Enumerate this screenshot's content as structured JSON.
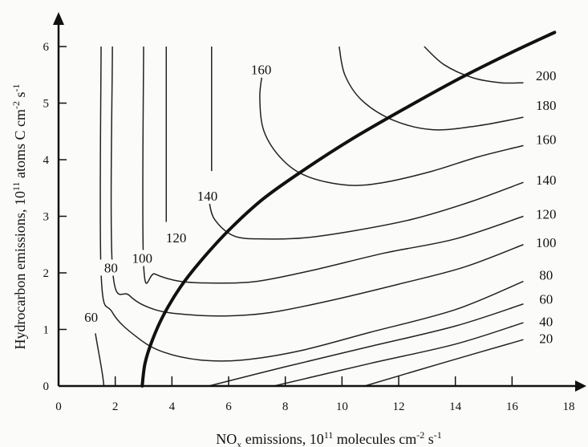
{
  "chart_data": {
    "type": "contour",
    "xlabel": {
      "pre": "NO",
      "sub": "x",
      "mid": " emissions, 10",
      "sup": "11",
      "post": " molecules cm",
      "sup2": "-2",
      "post2": " s",
      "sup3": "-1"
    },
    "ylabel": {
      "pre": "Hydrocarbon emissions, 10",
      "sup": "11",
      "mid": " atoms C cm",
      "sup2": "-2",
      "post": " s",
      "sup3": "-1"
    },
    "xlim": [
      0,
      18
    ],
    "ylim": [
      0,
      6.3
    ],
    "x_ticks": [
      0,
      2,
      4,
      6,
      8,
      10,
      12,
      14,
      16,
      18
    ],
    "y_ticks": [
      0,
      1,
      2,
      3,
      4,
      5,
      6
    ],
    "grid": false,
    "ridge_line": [
      [
        2.95,
        0
      ],
      [
        3.05,
        0.4
      ],
      [
        3.3,
        0.8
      ],
      [
        3.7,
        1.25
      ],
      [
        4.3,
        1.75
      ],
      [
        5.0,
        2.2
      ],
      [
        6.0,
        2.75
      ],
      [
        7.2,
        3.3
      ],
      [
        8.6,
        3.8
      ],
      [
        10.3,
        4.35
      ],
      [
        12.2,
        4.9
      ],
      [
        14.2,
        5.45
      ],
      [
        16.0,
        5.9
      ],
      [
        17.5,
        6.25
      ]
    ],
    "contours": [
      {
        "level": 20,
        "label": "20",
        "points": [
          [
            10.8,
            0
          ],
          [
            13.5,
            0.4
          ],
          [
            16.4,
            0.82
          ]
        ]
      },
      {
        "level": 40,
        "label": "40",
        "points": [
          [
            7.6,
            0
          ],
          [
            11.0,
            0.4
          ],
          [
            14.0,
            0.74
          ],
          [
            16.4,
            1.12
          ]
        ]
      },
      {
        "level": 60,
        "label": "60",
        "points": [
          [
            5.3,
            0
          ],
          [
            8.0,
            0.34
          ],
          [
            11.0,
            0.7
          ],
          [
            14.0,
            1.06
          ],
          [
            16.4,
            1.45
          ]
        ]
      },
      {
        "level": 80,
        "label": "80",
        "points": [
          [
            1.5,
            6.0
          ],
          [
            1.5,
            2.0
          ],
          [
            1.9,
            1.3
          ],
          [
            2.8,
            0.85
          ],
          [
            3.7,
            0.6
          ],
          [
            5.0,
            0.46
          ],
          [
            6.5,
            0.46
          ],
          [
            8.5,
            0.62
          ],
          [
            11.0,
            0.95
          ],
          [
            14.0,
            1.35
          ],
          [
            16.4,
            1.85
          ]
        ]
      },
      {
        "level": 100,
        "label": "100",
        "points": [
          [
            1.9,
            6.0
          ],
          [
            1.9,
            2.1
          ],
          [
            2.5,
            1.6
          ],
          [
            3.4,
            1.35
          ],
          [
            4.6,
            1.26
          ],
          [
            6.0,
            1.24
          ],
          [
            7.5,
            1.3
          ],
          [
            9.5,
            1.5
          ],
          [
            12.0,
            1.8
          ],
          [
            14.3,
            2.1
          ],
          [
            16.4,
            2.5
          ]
        ]
      },
      {
        "level": 120,
        "label": "120",
        "points": [
          [
            3.0,
            6.0
          ],
          [
            3.0,
            2.15
          ],
          [
            3.4,
            1.98
          ],
          [
            4.3,
            1.85
          ],
          [
            5.5,
            1.82
          ],
          [
            7.0,
            1.85
          ],
          [
            9.0,
            2.05
          ],
          [
            11.5,
            2.35
          ],
          [
            14.0,
            2.6
          ],
          [
            16.4,
            3.0
          ]
        ]
      },
      {
        "level": 140,
        "label": "140",
        "points": [
          [
            3.8,
            6.0
          ],
          [
            3.8,
            2.9
          ]
        ]
      },
      {
        "level": 140,
        "label": "140",
        "points": [
          [
            5.3,
            3.3
          ],
          [
            5.5,
            2.95
          ],
          [
            6.2,
            2.65
          ],
          [
            7.3,
            2.6
          ],
          [
            8.7,
            2.62
          ],
          [
            10.5,
            2.75
          ],
          [
            12.5,
            2.95
          ],
          [
            14.5,
            3.25
          ],
          [
            16.4,
            3.6
          ]
        ]
      },
      {
        "level": 160,
        "label": "160",
        "points": [
          [
            5.4,
            6.0
          ],
          [
            5.4,
            3.8
          ]
        ]
      },
      {
        "level": 160,
        "label": "160",
        "points": [
          [
            7.2,
            5.55
          ],
          [
            7.1,
            5.1
          ],
          [
            7.25,
            4.5
          ],
          [
            7.9,
            4.0
          ],
          [
            8.8,
            3.7
          ],
          [
            10.2,
            3.55
          ],
          [
            11.5,
            3.6
          ],
          [
            13.2,
            3.8
          ],
          [
            14.8,
            4.05
          ],
          [
            16.4,
            4.25
          ]
        ]
      },
      {
        "level": 180,
        "label": "180",
        "points": [
          [
            9.9,
            6.0
          ],
          [
            10.1,
            5.5
          ],
          [
            10.7,
            5.05
          ],
          [
            11.8,
            4.7
          ],
          [
            13.2,
            4.53
          ],
          [
            14.8,
            4.6
          ],
          [
            16.4,
            4.75
          ]
        ]
      },
      {
        "level": 200,
        "label": "200",
        "points": [
          [
            12.9,
            6.0
          ],
          [
            13.6,
            5.68
          ],
          [
            14.6,
            5.45
          ],
          [
            15.6,
            5.36
          ],
          [
            16.4,
            5.36
          ]
        ]
      },
      {
        "level": 60,
        "label": "60",
        "points": [
          [
            1.3,
            0.93
          ],
          [
            1.35,
            0.78
          ],
          [
            1.45,
            0.5
          ],
          [
            1.55,
            0.2
          ],
          [
            1.6,
            0
          ]
        ]
      }
    ],
    "labels": [
      {
        "text": "20",
        "x": 17.2,
        "y": 0.8
      },
      {
        "text": "40",
        "x": 17.2,
        "y": 1.1
      },
      {
        "text": "60",
        "x": 17.2,
        "y": 1.5
      },
      {
        "text": "80",
        "x": 17.2,
        "y": 1.92
      },
      {
        "text": "100",
        "x": 17.2,
        "y": 2.5
      },
      {
        "text": "120",
        "x": 17.2,
        "y": 3.0
      },
      {
        "text": "140",
        "x": 17.2,
        "y": 3.6
      },
      {
        "text": "160",
        "x": 17.2,
        "y": 4.32
      },
      {
        "text": "180",
        "x": 17.2,
        "y": 4.92
      },
      {
        "text": "200",
        "x": 17.2,
        "y": 5.45
      },
      {
        "text": "60",
        "x": 1.15,
        "y": 1.18
      },
      {
        "text": "80",
        "x": 1.85,
        "y": 2.05
      },
      {
        "text": "100",
        "x": 2.95,
        "y": 2.22
      },
      {
        "text": "120",
        "x": 4.15,
        "y": 2.58
      },
      {
        "text": "140",
        "x": 5.25,
        "y": 3.32
      },
      {
        "text": "160",
        "x": 7.15,
        "y": 5.55
      }
    ]
  }
}
